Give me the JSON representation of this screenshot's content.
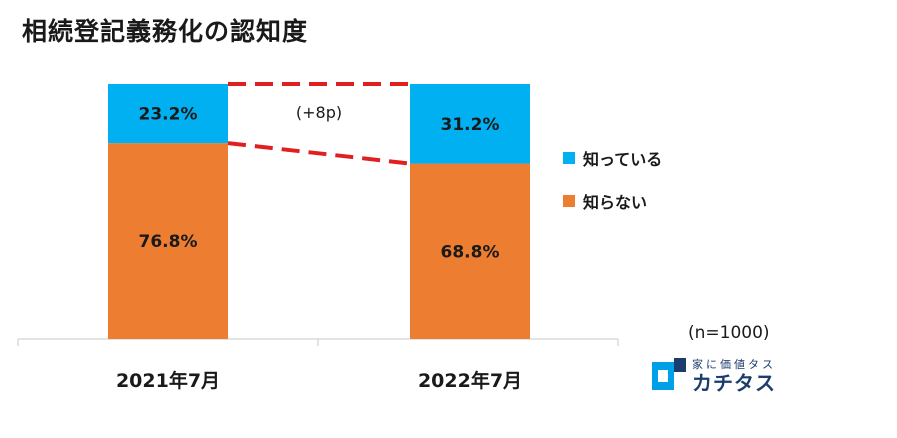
{
  "title": "相続登記義務化の認知度",
  "chart_data": {
    "type": "bar",
    "stacked": true,
    "categories": [
      "2021年7月",
      "2022年7月"
    ],
    "series": [
      {
        "name": "知らない",
        "values": [
          76.8,
          68.8
        ],
        "labels": [
          "76.8%",
          "68.8%"
        ],
        "color": "#ED7D31"
      },
      {
        "name": "知っている",
        "values": [
          23.2,
          31.2
        ],
        "labels": [
          "23.2%",
          "31.2%"
        ],
        "color": "#00B0F0"
      }
    ],
    "ylim": [
      0,
      100
    ],
    "annotation": "(+8p)",
    "connector_color": "#E02020",
    "legend_position": "right"
  },
  "legend": [
    {
      "label": "知っている",
      "color": "#00B0F0"
    },
    {
      "label": "知らない",
      "color": "#ED7D31"
    }
  ],
  "sample_note": "(n=1000)",
  "logo": {
    "tagline": "家に価値タス",
    "name": "カチタス",
    "color": "#1B3D6E",
    "accent": "#00A0E9"
  }
}
